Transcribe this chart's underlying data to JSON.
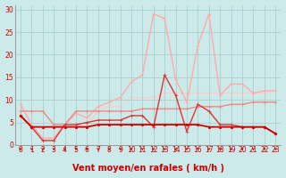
{
  "xlabel": "Vent moyen/en rafales ( km/h )",
  "xlim": [
    -0.5,
    23.5
  ],
  "ylim": [
    0,
    31
  ],
  "yticks": [
    0,
    5,
    10,
    15,
    20,
    25,
    30
  ],
  "xticks": [
    0,
    1,
    2,
    3,
    4,
    5,
    6,
    7,
    8,
    9,
    10,
    11,
    12,
    13,
    14,
    15,
    16,
    17,
    18,
    19,
    20,
    21,
    22,
    23
  ],
  "bg_color": "#cceaea",
  "grid_color": "#aacece",
  "lines": [
    {
      "x": [
        0,
        1,
        2,
        3,
        4,
        5,
        6,
        7,
        8,
        9,
        10,
        11,
        12,
        13,
        14,
        15,
        16,
        17,
        18,
        19,
        20,
        21,
        22,
        23
      ],
      "y": [
        6.5,
        4.0,
        4.0,
        4.0,
        4.0,
        4.0,
        4.0,
        4.5,
        4.5,
        4.5,
        4.5,
        4.5,
        4.5,
        4.5,
        4.5,
        4.5,
        4.5,
        4.0,
        4.0,
        4.0,
        4.0,
        4.0,
        4.0,
        2.5
      ],
      "color": "#cc0000",
      "lw": 1.3,
      "marker": "s",
      "ms": 2.0,
      "zorder": 5
    },
    {
      "x": [
        0,
        1,
        2,
        3,
        4,
        5,
        6,
        7,
        8,
        9,
        10,
        11,
        12,
        13,
        14,
        15,
        16,
        17,
        18,
        19,
        20,
        21,
        22,
        23
      ],
      "y": [
        6.5,
        4.0,
        1.0,
        1.0,
        4.5,
        4.5,
        5.0,
        5.5,
        5.5,
        5.5,
        6.5,
        6.5,
        4.0,
        15.5,
        11.0,
        3.0,
        9.0,
        7.5,
        4.5,
        4.5,
        4.0,
        4.0,
        4.0,
        2.5
      ],
      "color": "#dd3333",
      "lw": 1.0,
      "marker": "+",
      "ms": 3.5,
      "zorder": 4
    },
    {
      "x": [
        0,
        1,
        2,
        3,
        4,
        5,
        6,
        7,
        8,
        9,
        10,
        11,
        12,
        13,
        14,
        15,
        16,
        17,
        18,
        19,
        20,
        21,
        22,
        23
      ],
      "y": [
        7.5,
        7.5,
        7.5,
        4.5,
        4.5,
        7.5,
        7.5,
        7.5,
        7.5,
        7.5,
        7.5,
        8.0,
        8.0,
        8.0,
        8.0,
        8.0,
        8.5,
        8.5,
        8.5,
        9.0,
        9.0,
        9.5,
        9.5,
        9.5
      ],
      "color": "#ee8888",
      "lw": 1.0,
      "marker": "+",
      "ms": 3.0,
      "zorder": 3
    },
    {
      "x": [
        0,
        1,
        2,
        3,
        4,
        5,
        6,
        7,
        8,
        9,
        10,
        11,
        12,
        13,
        14,
        15,
        16,
        17,
        18,
        19,
        20,
        21,
        22,
        23
      ],
      "y": [
        9.0,
        4.5,
        1.5,
        1.5,
        4.5,
        7.0,
        6.0,
        8.5,
        9.5,
        10.5,
        14.0,
        15.5,
        29.0,
        28.0,
        14.5,
        9.5,
        22.0,
        29.0,
        11.0,
        13.5,
        13.5,
        11.5,
        12.0,
        12.0
      ],
      "color": "#ffaaaa",
      "lw": 1.0,
      "marker": "+",
      "ms": 3.0,
      "zorder": 2
    },
    {
      "x": [
        0,
        1,
        2,
        3,
        4,
        5,
        6,
        7,
        8,
        9,
        10,
        11,
        12,
        13,
        14,
        15,
        16,
        17,
        18,
        19,
        20,
        21,
        22,
        23
      ],
      "y": [
        9.0,
        4.5,
        1.5,
        1.5,
        4.5,
        4.5,
        4.5,
        7.5,
        8.5,
        8.5,
        10.5,
        10.5,
        10.5,
        11.5,
        11.5,
        11.5,
        11.5,
        11.5,
        11.5,
        11.5,
        11.5,
        11.5,
        11.5,
        12.0
      ],
      "color": "#ffcccc",
      "lw": 1.0,
      "marker": "+",
      "ms": 2.5,
      "zorder": 1
    }
  ],
  "arrow_color": "#cc0000",
  "tick_color": "#cc0000",
  "xlabel_color": "#cc0000",
  "xlabel_fontsize": 7.0,
  "tick_fontsize": 5.5
}
